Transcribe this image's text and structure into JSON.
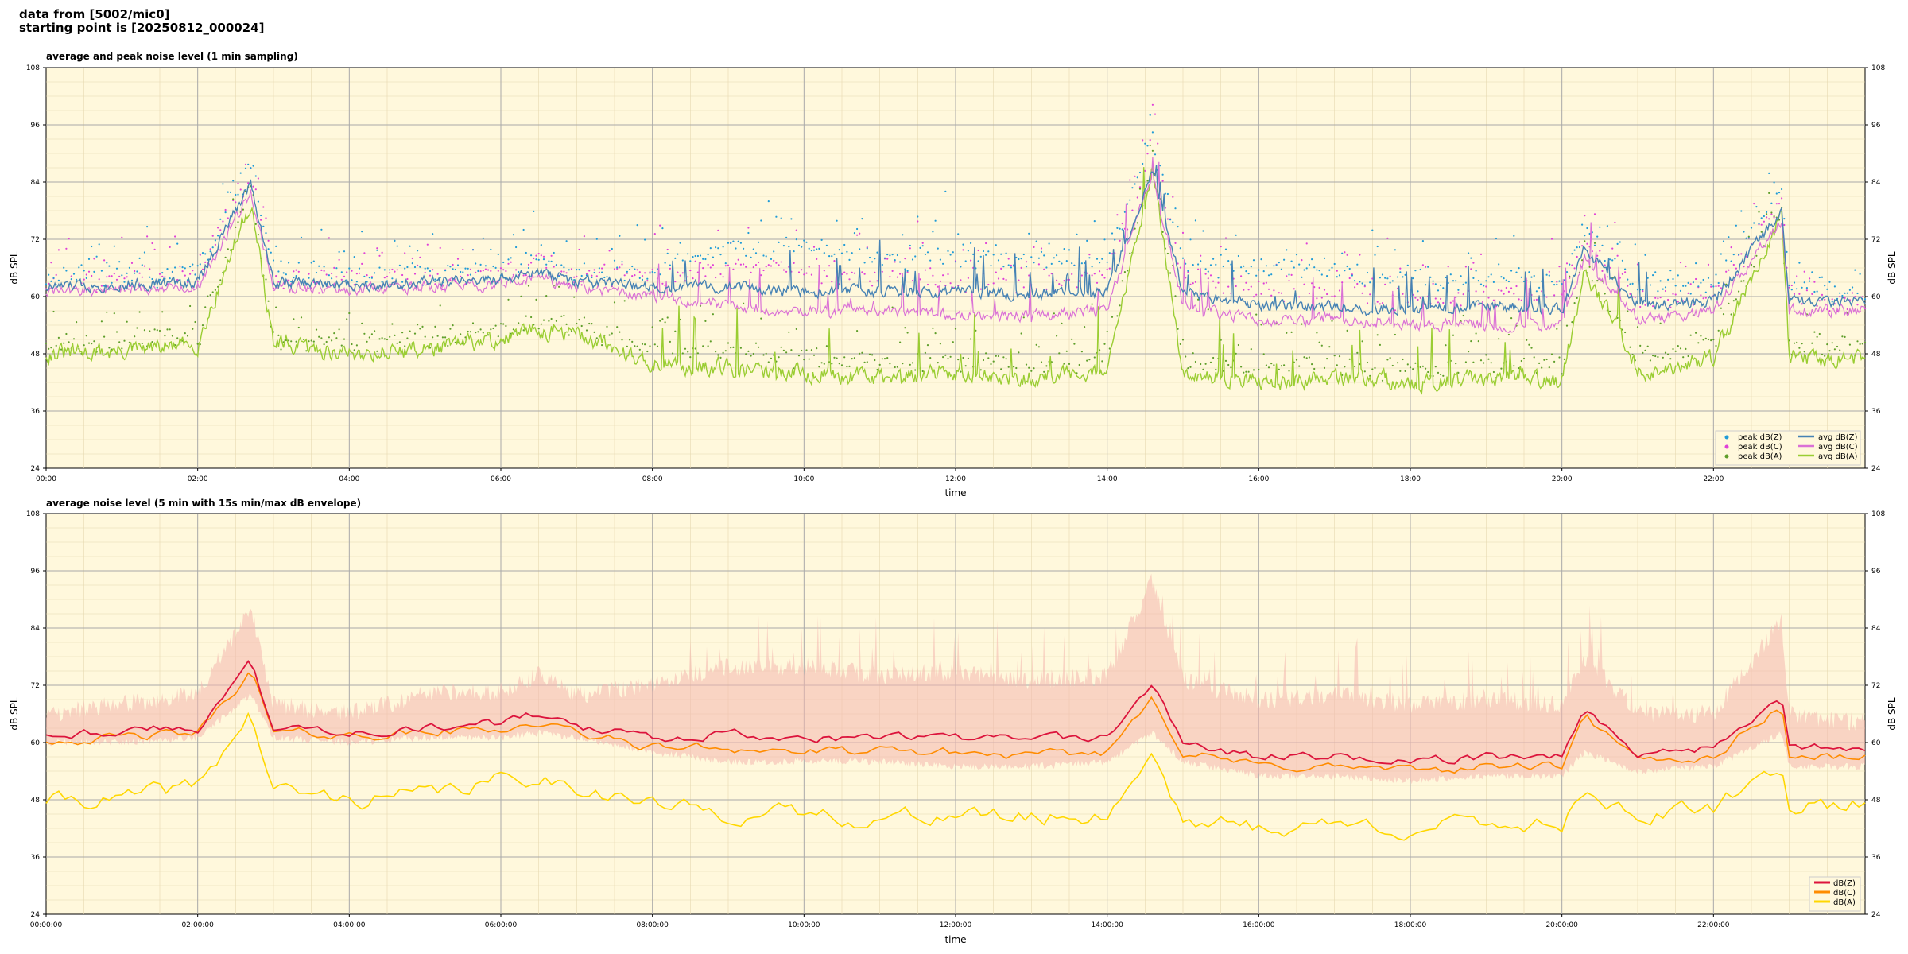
{
  "header": {
    "line1": "data from [5002/mic0]",
    "line2": "starting point is [20250812_000024]"
  },
  "colors": {
    "plot_bg": "#fff8dc",
    "peak_z": "#1f9bd7",
    "peak_c": "#e040d8",
    "peak_a": "#5e9e2a",
    "avg_z": "#4682b4",
    "avg_c": "#da70d6",
    "avg_a": "#9acd32",
    "db_z": "#dc143c",
    "db_c": "#ff8c00",
    "db_a": "#ffd700",
    "envelope": "#f4b6ae"
  },
  "chart_data": [
    {
      "type": "line",
      "title": "average and peak noise level (1 min sampling)",
      "xlabel": "time",
      "ylabel": "dB SPL",
      "ylim": [
        24,
        108
      ],
      "yticks": [
        "24",
        "36",
        "48",
        "60",
        "72",
        "84",
        "96",
        "108"
      ],
      "xlim": [
        0,
        24
      ],
      "xticks": [
        "00:00",
        "02:00",
        "04:00",
        "06:00",
        "08:00",
        "10:00",
        "12:00",
        "14:00",
        "16:00",
        "18:00",
        "20:00",
        "22:00"
      ],
      "grid": true,
      "legend_position": "bottom-right",
      "legend": [
        "peak dB(Z)",
        "peak dB(C)",
        "peak dB(A)",
        "avg dB(Z)",
        "avg dB(C)",
        "avg dB(A)"
      ],
      "x_hours": [
        0,
        1,
        2,
        2.7,
        3,
        4,
        5,
        6,
        6.5,
        7,
        8,
        9,
        10,
        11,
        12,
        13,
        14,
        14.6,
        15,
        16,
        17,
        18,
        19,
        20,
        20.3,
        21,
        22,
        22.9,
        23,
        24
      ],
      "series": [
        {
          "name": "avg dB(Z)",
          "values": [
            62,
            62.5,
            63,
            84,
            63,
            62.5,
            63,
            63.5,
            65,
            63,
            62,
            62,
            61,
            61,
            61,
            60.5,
            61,
            87,
            61,
            58,
            58,
            57,
            58,
            57,
            70,
            58,
            59,
            78,
            59,
            59
          ]
        },
        {
          "name": "avg dB(C)",
          "values": [
            61,
            61.5,
            62,
            82,
            62,
            61.5,
            62,
            62.5,
            64,
            62,
            60,
            58,
            57,
            57,
            56,
            56,
            57,
            86,
            58,
            55,
            55,
            54,
            54,
            54,
            68,
            55,
            57,
            76,
            57,
            57
          ]
        },
        {
          "name": "avg dB(A)",
          "values": [
            48,
            48.5,
            50,
            80,
            50,
            48,
            49,
            51,
            53,
            52,
            46,
            45,
            44,
            43,
            44,
            43,
            44,
            87,
            44,
            42,
            43,
            42,
            43,
            42,
            66,
            44,
            47,
            77,
            47,
            47
          ]
        },
        {
          "name": "peak dB(Z)",
          "values": [
            64,
            64.5,
            65,
            88,
            65,
            64.5,
            65,
            66,
            68,
            65,
            66,
            70,
            70,
            68,
            68,
            67,
            68,
            93,
            67,
            65,
            65,
            63,
            64,
            63,
            74,
            62,
            62,
            83,
            62,
            61
          ]
        },
        {
          "name": "peak dB(C)",
          "values": [
            63,
            63.5,
            64,
            86,
            64,
            63.5,
            64,
            65,
            67,
            64,
            64,
            66,
            66,
            64,
            63,
            63,
            64,
            91,
            64,
            61,
            61,
            59,
            60,
            59,
            72,
            59,
            60,
            81,
            60,
            59
          ]
        },
        {
          "name": "peak dB(A)",
          "values": [
            50,
            50.5,
            52,
            82,
            52,
            50,
            51,
            53,
            55,
            54,
            49,
            48,
            47,
            46,
            47,
            46,
            47,
            89,
            47,
            45,
            46,
            45,
            46,
            45,
            68,
            47,
            50,
            79,
            50,
            50
          ]
        }
      ]
    },
    {
      "type": "line",
      "title": "average noise level (5 min with 15s min/max dB envelope)",
      "xlabel": "time",
      "ylabel": "dB SPL",
      "ylim": [
        24,
        108
      ],
      "yticks": [
        "24",
        "36",
        "48",
        "60",
        "72",
        "84",
        "96",
        "108"
      ],
      "xlim": [
        0,
        24
      ],
      "xticks": [
        "00:00:00",
        "02:00:00",
        "04:00:00",
        "06:00:00",
        "08:00:00",
        "10:00:00",
        "12:00:00",
        "14:00:00",
        "16:00:00",
        "18:00:00",
        "20:00:00",
        "22:00:00"
      ],
      "grid": true,
      "legend_position": "bottom-right",
      "legend": [
        "dB(Z)",
        "dB(C)",
        "dB(A)"
      ],
      "x_hours": [
        0,
        1,
        2,
        2.7,
        3,
        4,
        5,
        6,
        6.5,
        7,
        8,
        9,
        10,
        11,
        12,
        13,
        14,
        14.6,
        15,
        16,
        17,
        18,
        19,
        20,
        20.3,
        21,
        22,
        22.9,
        23,
        24
      ],
      "series": [
        {
          "name": "dB(Z)",
          "values": [
            62,
            62.5,
            63,
            77,
            63,
            62.5,
            63,
            64,
            66,
            63,
            61,
            62,
            61,
            61,
            61,
            60.5,
            61,
            72,
            60,
            57,
            57,
            56,
            57,
            57,
            67,
            58,
            59,
            70,
            59,
            59
          ]
        },
        {
          "name": "dB(C)",
          "values": [
            60.5,
            61,
            62,
            75,
            62,
            61.5,
            62,
            63,
            64,
            62,
            59,
            59,
            58,
            58,
            58,
            57,
            58,
            70,
            58,
            55,
            55,
            54,
            55,
            55,
            65,
            56,
            57,
            68,
            57,
            57
          ]
        },
        {
          "name": "dB(A)",
          "values": [
            48,
            48,
            51,
            66,
            50,
            48,
            49,
            52,
            53,
            51,
            47,
            45,
            45,
            44,
            45,
            44,
            45,
            58,
            44,
            42,
            43,
            42,
            43,
            43,
            51,
            44,
            46,
            55,
            47,
            47
          ]
        },
        {
          "name": "envelope max",
          "values": [
            66,
            68,
            70,
            88,
            68,
            66,
            70,
            71,
            74,
            70,
            72,
            76,
            76,
            74,
            75,
            73,
            74,
            94,
            73,
            69,
            70,
            68,
            69,
            68,
            78,
            66,
            66,
            86,
            66,
            64
          ]
        },
        {
          "name": "envelope min",
          "values": [
            60,
            60,
            61,
            70,
            61,
            60,
            61,
            61,
            62,
            61,
            58,
            56,
            56,
            56,
            55,
            55,
            56,
            62,
            56,
            53,
            53,
            52,
            53,
            53,
            58,
            54,
            55,
            62,
            55,
            55
          ]
        }
      ]
    }
  ]
}
